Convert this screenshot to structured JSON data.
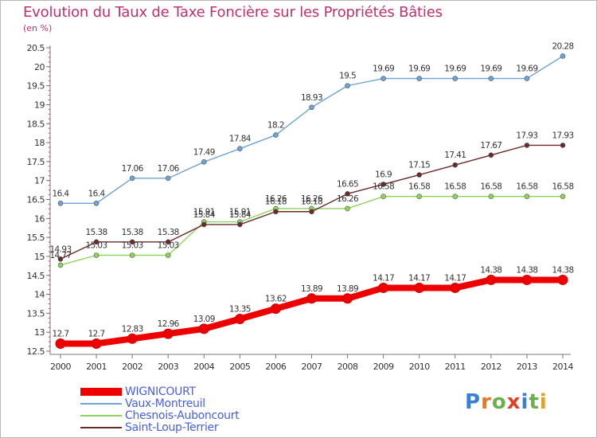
{
  "header": {
    "title": "Evolution du Taux de Taxe Foncière sur les Propriétés Bâties",
    "subtitle": "(en %)"
  },
  "brand": {
    "letters": [
      "P",
      "r",
      "o",
      "x",
      "i",
      "t",
      "i"
    ],
    "colors": [
      "#3a7fd5",
      "#e07a2a",
      "#6ab04c",
      "#e0402a",
      "#3a7fd5",
      "#6ab04c",
      "#e0a02a"
    ]
  },
  "chart_data": {
    "type": "line",
    "title": "Evolution du Taux de Taxe Foncière sur les Propriétés Bâties",
    "ylabel": "(en %)",
    "xlabel": "",
    "x": [
      "2000",
      "2001",
      "2002",
      "2003",
      "2004",
      "2005",
      "2006",
      "2007",
      "2008",
      "2009",
      "2010",
      "2011",
      "2012",
      "2013",
      "2014"
    ],
    "ylim": [
      12.5,
      20.5
    ],
    "yticks": [
      "12.5",
      "13",
      "13.5",
      "14",
      "14.5",
      "15",
      "15.5",
      "16",
      "16.5",
      "17",
      "17.5",
      "18",
      "18.5",
      "19",
      "19.5",
      "20",
      "20.5"
    ],
    "grid": false,
    "legend_position": "bottom-left",
    "series": [
      {
        "name": "WIGNICOURT",
        "color": "#ee0000",
        "values": [
          12.7,
          12.7,
          12.83,
          12.96,
          13.09,
          13.35,
          13.62,
          13.89,
          13.89,
          14.17,
          14.17,
          14.17,
          14.38,
          14.38,
          14.38
        ],
        "labels": [
          "12.7",
          "12.7",
          "12.83",
          "12.96",
          "13.09",
          "13.35",
          "13.62",
          "13.89",
          "13.89",
          "14.17",
          "14.17",
          "14.17",
          "14.38",
          "14.38",
          "14.38"
        ]
      },
      {
        "name": "Vaux-Montreuil",
        "color": "#6da3d6",
        "values": [
          16.4,
          16.4,
          17.06,
          17.06,
          17.49,
          17.84,
          18.2,
          18.93,
          19.5,
          19.69,
          19.69,
          19.69,
          19.69,
          19.69,
          20.28
        ],
        "labels": [
          "16.4",
          "16.4",
          "17.06",
          "17.06",
          "17.49",
          "17.84",
          "18.2",
          "18.93",
          "19.5",
          "19.69",
          "19.69",
          "19.69",
          "19.69",
          "19.69",
          "20.28"
        ]
      },
      {
        "name": "Chesnois-Auboncourt",
        "color": "#8ed45a",
        "values": [
          14.77,
          15.03,
          15.03,
          15.03,
          15.91,
          15.91,
          16.26,
          16.26,
          16.26,
          16.58,
          16.58,
          16.58,
          16.58,
          16.58,
          16.58
        ],
        "labels": [
          "14.77",
          "15.03",
          "15.03",
          "15.03",
          "15.91",
          "15.91",
          "16.26",
          "16.26",
          "16.26",
          "16.58",
          "16.58",
          "16.58",
          "16.58",
          "16.58",
          "16.58"
        ]
      },
      {
        "name": "Saint-Loup-Terrier",
        "color": "#6b2a2a",
        "values": [
          14.93,
          15.38,
          15.38,
          15.38,
          15.84,
          15.84,
          16.18,
          16.18,
          16.65,
          16.9,
          17.15,
          17.41,
          17.67,
          17.93,
          17.93
        ],
        "labels": [
          "14.93",
          "15.38",
          "15.38",
          "15.38",
          "15.84",
          "15.84",
          "16.18",
          "16.18",
          "16.65",
          "16.9",
          "17.15",
          "17.41",
          "17.67",
          "17.93",
          "17.93"
        ]
      }
    ]
  }
}
